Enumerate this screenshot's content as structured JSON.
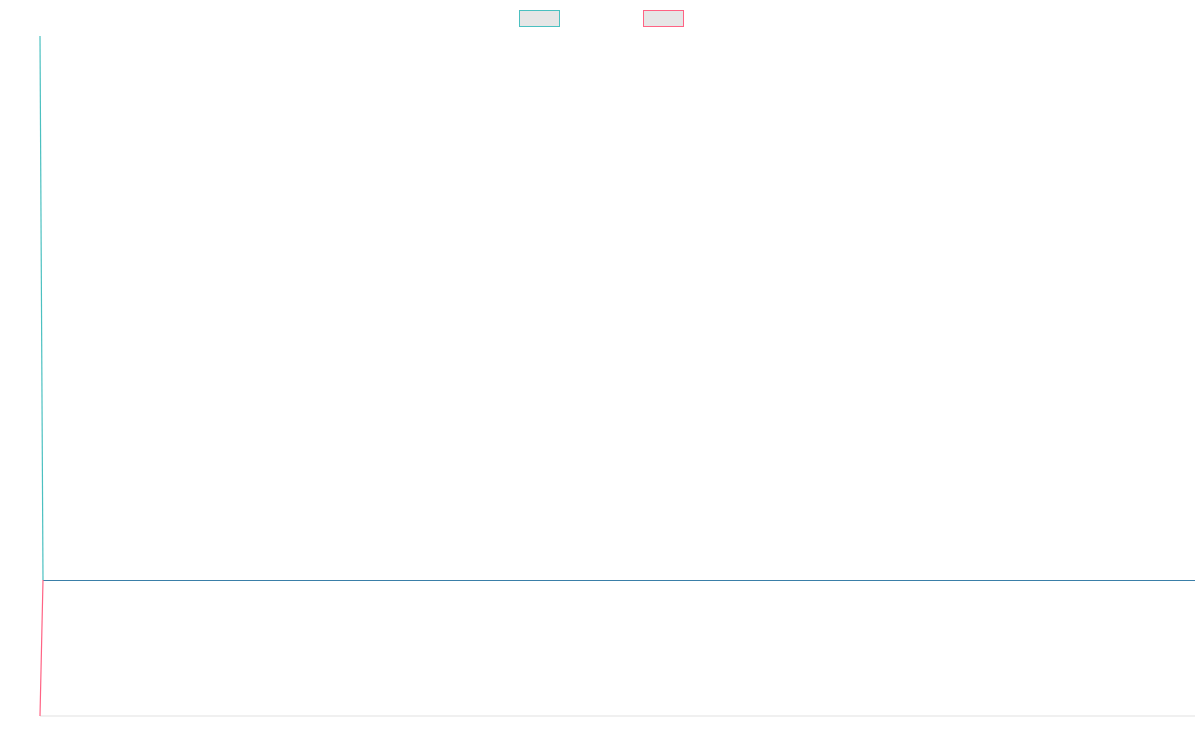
{
  "chart_data": {
    "type": "line",
    "title": "",
    "xlabel": "",
    "ylabel": "",
    "grid": false,
    "legend_position": "top-center",
    "x": [
      0,
      1
    ],
    "ylim": [
      -0.25,
      1.0
    ],
    "series": [
      {
        "color": "#4bc0c0",
        "fill": "#e6e6e6",
        "values": [
          1.0,
          0.0
        ]
      },
      {
        "color": "#ff6384",
        "fill": "#e6e6e6",
        "values": [
          -0.25,
          0.0
        ]
      }
    ],
    "reference_line": {
      "y": 0.0,
      "color": "#3a7fa8"
    },
    "axis_color": "#e0e0e0"
  }
}
